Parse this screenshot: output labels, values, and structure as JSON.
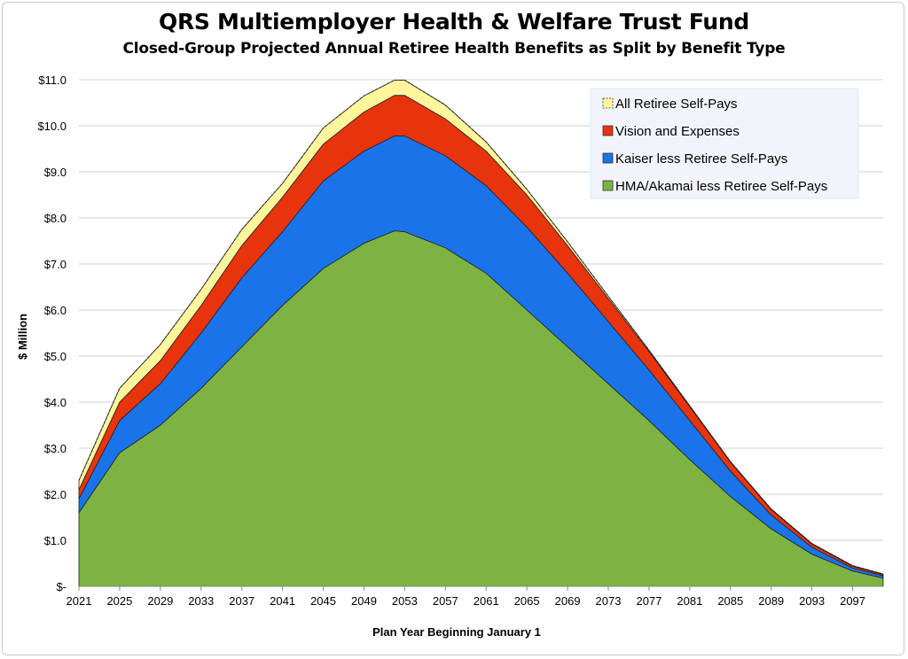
{
  "chart_data": {
    "type": "area",
    "stacked": true,
    "title": "QRS Multiemployer Health & Welfare Trust Fund",
    "subtitle": "Closed-Group Projected Annual Retiree Health Benefits as Split by Benefit Type",
    "xlabel": "Plan Year Beginning January 1",
    "ylabel": "$ Million",
    "ylim": [
      0,
      11
    ],
    "y_ticks": [
      "$-",
      "$1.0",
      "$2.0",
      "$3.0",
      "$4.0",
      "$5.0",
      "$6.0",
      "$7.0",
      "$8.0",
      "$9.0",
      "$10.0",
      "$11.0"
    ],
    "x_ticks": [
      "2021",
      "2025",
      "2029",
      "2033",
      "2037",
      "2041",
      "2045",
      "2049",
      "2053",
      "2057",
      "2061",
      "2065",
      "2069",
      "2073",
      "2077",
      "2081",
      "2085",
      "2089",
      "2093",
      "2097"
    ],
    "grid": true,
    "legend_position": "top-right",
    "x": [
      2021,
      2025,
      2029,
      2033,
      2037,
      2041,
      2045,
      2049,
      2052,
      2053,
      2057,
      2061,
      2065,
      2069,
      2073,
      2077,
      2081,
      2085,
      2089,
      2093,
      2097,
      2100
    ],
    "series": [
      {
        "name": "HMA/Akamai less Retiree Self-Pays",
        "color": "#7cb342",
        "values": [
          1.6,
          2.9,
          3.5,
          4.3,
          5.2,
          6.1,
          6.9,
          7.45,
          7.72,
          7.7,
          7.35,
          6.8,
          6.0,
          5.2,
          4.4,
          3.6,
          2.75,
          1.95,
          1.25,
          0.7,
          0.33,
          0.18
        ]
      },
      {
        "name": "Kaiser less Retiree Self-Pays",
        "color": "#1a73e8",
        "values": [
          0.3,
          0.7,
          0.9,
          1.2,
          1.5,
          1.6,
          1.9,
          2.0,
          2.06,
          2.08,
          2.0,
          1.9,
          1.8,
          1.6,
          1.35,
          1.1,
          0.85,
          0.55,
          0.3,
          0.15,
          0.07,
          0.05
        ]
      },
      {
        "name": "Vision and Expenses",
        "color": "#e8340c",
        "values": [
          0.2,
          0.4,
          0.5,
          0.6,
          0.7,
          0.75,
          0.8,
          0.85,
          0.88,
          0.88,
          0.8,
          0.75,
          0.7,
          0.6,
          0.5,
          0.4,
          0.3,
          0.2,
          0.12,
          0.07,
          0.04,
          0.03
        ]
      },
      {
        "name": "All Retiree Self-Pays",
        "color": "#fff59d",
        "values": [
          0.2,
          0.3,
          0.35,
          0.35,
          0.35,
          0.3,
          0.35,
          0.35,
          0.33,
          0.33,
          0.3,
          0.2,
          0.12,
          0.08,
          0.05,
          0.03,
          0.02,
          0.01,
          0.01,
          0.01,
          0.01,
          0.01
        ]
      }
    ],
    "legend_order": [
      "All Retiree Self-Pays",
      "Vision and Expenses",
      "Kaiser less Retiree Self-Pays",
      "HMA/Akamai less Retiree Self-Pays"
    ]
  }
}
